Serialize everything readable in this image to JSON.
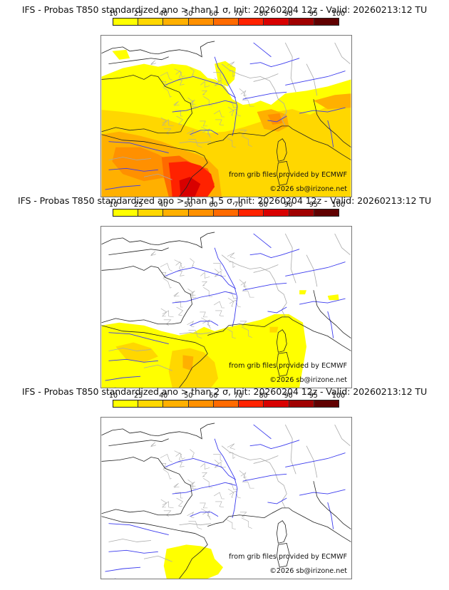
{
  "colorbar": {
    "ticks": [
      "10",
      "25",
      "40",
      "50",
      "60",
      "70",
      "80",
      "90",
      "95",
      "100"
    ],
    "colors": [
      "#ffff00",
      "#ffd700",
      "#ffb000",
      "#ff9000",
      "#ff6a00",
      "#ff2200",
      "#d80000",
      "#a00000",
      "#600000"
    ]
  },
  "panels": [
    {
      "title": "IFS - Probas T850  standardized ano > than 1 σ, Init: 20260204 12z - Valid: 20260213:12 TU",
      "threshold": "1"
    },
    {
      "title": "IFS - Probas T850  standardized ano > than 1.5 σ, Init: 20260204 12z - Valid: 20260213:12 TU",
      "threshold": "1.5"
    },
    {
      "title": "IFS - Probas T850  standardized ano > than 2 σ, Init: 20260204 12z - Valid: 20260213:12 TU",
      "threshold": "2"
    }
  ],
  "credits": {
    "source": "from grib files provided by ECMWF",
    "copyright": "©2026 sb@irizone.net"
  }
}
